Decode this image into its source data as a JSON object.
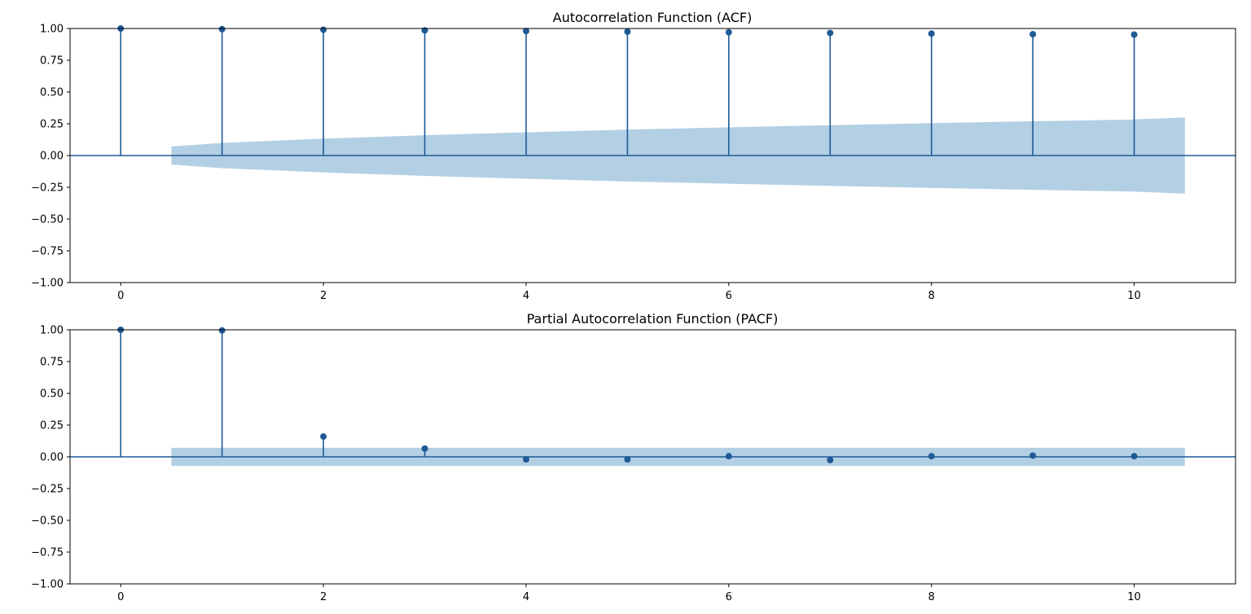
{
  "colors": {
    "stem": "#1f5a96",
    "band": "#b3cfe4",
    "axis": "#000000",
    "background": "#ffffff"
  },
  "chart_data": [
    {
      "type": "stem",
      "title": "Autocorrelation Function (ACF)",
      "xlabel": "",
      "ylabel": "",
      "x": [
        0,
        1,
        2,
        3,
        4,
        5,
        6,
        7,
        8,
        9,
        10
      ],
      "values": [
        1.0,
        0.995,
        0.99,
        0.985,
        0.98,
        0.975,
        0.97,
        0.965,
        0.96,
        0.955,
        0.952
      ],
      "confidence_band": {
        "x": [
          0.5,
          1,
          2,
          3,
          4,
          5,
          6,
          7,
          8,
          9,
          10,
          10.5
        ],
        "upper": [
          0.071,
          0.099,
          0.133,
          0.16,
          0.183,
          0.204,
          0.222,
          0.239,
          0.255,
          0.27,
          0.284,
          0.3
        ],
        "lower": [
          -0.071,
          -0.099,
          -0.133,
          -0.16,
          -0.183,
          -0.204,
          -0.222,
          -0.239,
          -0.255,
          -0.27,
          -0.284,
          -0.3
        ]
      },
      "xlim": [
        -0.5,
        11.0
      ],
      "ylim": [
        -1.0,
        1.0
      ],
      "x_ticks": [
        0,
        2,
        4,
        6,
        8,
        10
      ],
      "x_tick_labels": [
        "0",
        "2",
        "4",
        "6",
        "8",
        "10"
      ],
      "y_ticks": [
        1.0,
        0.75,
        0.5,
        0.25,
        0.0,
        -0.25,
        -0.5,
        -0.75,
        -1.0
      ],
      "y_tick_labels": [
        "1.00",
        "0.75",
        "0.50",
        "0.25",
        "0.00",
        "−0.25",
        "−0.50",
        "−0.75",
        "−1.00"
      ],
      "grid": false,
      "legend": "none"
    },
    {
      "type": "stem",
      "title": "Partial Autocorrelation Function (PACF)",
      "xlabel": "",
      "ylabel": "",
      "x": [
        0,
        1,
        2,
        3,
        4,
        5,
        6,
        7,
        8,
        9,
        10
      ],
      "values": [
        1.0,
        0.995,
        0.16,
        0.065,
        -0.02,
        -0.02,
        0.005,
        -0.025,
        0.005,
        0.01,
        0.005
      ],
      "confidence_band": {
        "x": [
          0.5,
          10.5
        ],
        "upper": [
          0.071,
          0.071
        ],
        "lower": [
          -0.071,
          -0.071
        ]
      },
      "xlim": [
        -0.5,
        11.0
      ],
      "ylim": [
        -1.0,
        1.0
      ],
      "x_ticks": [
        0,
        2,
        4,
        6,
        8,
        10
      ],
      "x_tick_labels": [
        "0",
        "2",
        "4",
        "6",
        "8",
        "10"
      ],
      "y_ticks": [
        1.0,
        0.75,
        0.5,
        0.25,
        0.0,
        -0.25,
        -0.5,
        -0.75,
        -1.0
      ],
      "y_tick_labels": [
        "1.00",
        "0.75",
        "0.50",
        "0.25",
        "0.00",
        "−0.25",
        "−0.50",
        "−0.75",
        "−1.00"
      ],
      "grid": false,
      "legend": "none"
    }
  ]
}
